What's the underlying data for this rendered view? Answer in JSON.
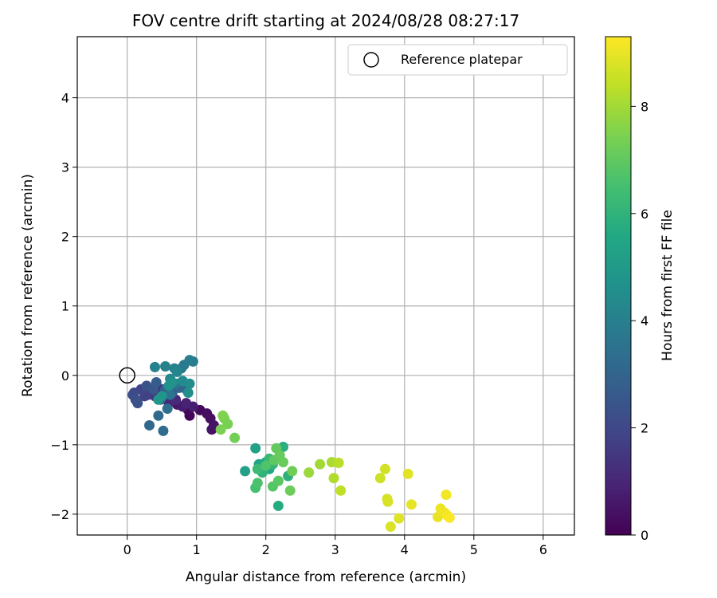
{
  "chart_data": {
    "type": "scatter",
    "title": "FOV centre drift starting at 2024/08/28 08:27:17",
    "xlabel": "Angular distance from reference (arcmin)",
    "ylabel": "Rotation from reference (arcmin)",
    "xlim": [
      -0.72,
      6.45
    ],
    "ylim": [
      -2.3,
      4.88
    ],
    "xticks": [
      0,
      1,
      2,
      3,
      4,
      5,
      6
    ],
    "yticks": [
      -2,
      -1,
      0,
      1,
      2,
      3,
      4
    ],
    "grid": true,
    "legend": {
      "position": "top-right",
      "entries": [
        "Reference platepar"
      ]
    },
    "reference_point": {
      "x": 0,
      "y": 0
    },
    "colorbar": {
      "label": "Hours from first FF file",
      "ticks": [
        0,
        2,
        4,
        6,
        8
      ],
      "range": [
        0,
        9.3
      ],
      "colormap": "viridis"
    },
    "points": [
      [
        0.9,
        -0.58,
        0.1
      ],
      [
        0.88,
        -0.5,
        0.2
      ],
      [
        1.05,
        -0.5,
        0.25
      ],
      [
        1.15,
        -0.55,
        0.35
      ],
      [
        1.2,
        -0.62,
        0.4
      ],
      [
        1.22,
        -0.78,
        0.45
      ],
      [
        1.25,
        -0.72,
        0.5
      ],
      [
        0.72,
        -0.42,
        0.6
      ],
      [
        0.8,
        -0.45,
        0.7
      ],
      [
        0.95,
        -0.45,
        0.8
      ],
      [
        0.85,
        -0.4,
        0.9
      ],
      [
        0.6,
        -0.4,
        1.0
      ],
      [
        0.7,
        -0.35,
        1.1
      ],
      [
        0.55,
        -0.3,
        1.2
      ],
      [
        0.5,
        -0.2,
        1.3
      ],
      [
        0.45,
        -0.25,
        1.4
      ],
      [
        0.4,
        -0.3,
        1.5
      ],
      [
        0.35,
        -0.22,
        1.6
      ],
      [
        0.3,
        -0.28,
        1.7
      ],
      [
        0.25,
        -0.3,
        1.8
      ],
      [
        0.2,
        -0.2,
        1.9
      ],
      [
        0.1,
        -0.25,
        2.0
      ],
      [
        0.08,
        -0.28,
        2.1
      ],
      [
        0.12,
        -0.35,
        2.2
      ],
      [
        0.15,
        -0.4,
        2.3
      ],
      [
        0.28,
        -0.15,
        2.4
      ],
      [
        0.38,
        -0.2,
        2.5
      ],
      [
        0.48,
        -0.35,
        2.6
      ],
      [
        0.42,
        -0.1,
        2.7
      ],
      [
        0.55,
        -0.2,
        2.8
      ],
      [
        0.65,
        -0.25,
        2.9
      ],
      [
        0.75,
        -0.18,
        3.0
      ],
      [
        0.85,
        -0.2,
        3.1
      ],
      [
        0.32,
        -0.72,
        3.15
      ],
      [
        0.45,
        -0.58,
        3.2
      ],
      [
        0.52,
        -0.8,
        3.3
      ],
      [
        0.58,
        -0.48,
        3.4
      ],
      [
        0.62,
        -0.28,
        3.5
      ],
      [
        0.7,
        -0.12,
        3.6
      ],
      [
        0.78,
        0.1,
        3.7
      ],
      [
        0.82,
        0.15,
        3.8
      ],
      [
        0.9,
        0.22,
        3.9
      ],
      [
        0.95,
        0.2,
        3.95
      ],
      [
        0.4,
        0.12,
        4.0
      ],
      [
        0.55,
        0.13,
        4.05
      ],
      [
        0.68,
        0.1,
        4.1
      ],
      [
        0.72,
        0.05,
        4.2
      ],
      [
        0.62,
        -0.05,
        4.3
      ],
      [
        0.8,
        -0.08,
        4.4
      ],
      [
        0.9,
        -0.12,
        4.5
      ],
      [
        0.88,
        -0.25,
        4.6
      ],
      [
        0.6,
        -0.15,
        4.7
      ],
      [
        0.65,
        -0.1,
        4.75
      ],
      [
        0.5,
        -0.3,
        4.8
      ],
      [
        0.45,
        -0.35,
        4.85
      ],
      [
        1.7,
        -1.38,
        5.2
      ],
      [
        1.85,
        -1.05,
        5.3
      ],
      [
        1.9,
        -1.28,
        5.4
      ],
      [
        2.0,
        -1.25,
        5.5
      ],
      [
        2.05,
        -1.35,
        5.6
      ],
      [
        2.18,
        -1.88,
        5.7
      ],
      [
        2.25,
        -1.03,
        5.8
      ],
      [
        2.32,
        -1.45,
        5.9
      ],
      [
        1.95,
        -1.4,
        6.0
      ],
      [
        2.1,
        -1.28,
        6.1
      ],
      [
        2.05,
        -1.2,
        6.2
      ],
      [
        1.88,
        -1.35,
        6.3
      ],
      [
        1.85,
        -1.62,
        6.5
      ],
      [
        1.88,
        -1.55,
        6.6
      ],
      [
        2.0,
        -1.3,
        6.7
      ],
      [
        2.1,
        -1.6,
        6.8
      ],
      [
        2.18,
        -1.52,
        6.9
      ],
      [
        2.12,
        -1.22,
        7.0
      ],
      [
        2.15,
        -1.05,
        7.05
      ],
      [
        2.2,
        -1.15,
        7.1
      ],
      [
        2.25,
        -1.25,
        7.15
      ],
      [
        2.35,
        -1.66,
        7.2
      ],
      [
        2.38,
        -1.38,
        7.25
      ],
      [
        1.55,
        -0.9,
        7.3
      ],
      [
        1.4,
        -0.62,
        7.35
      ],
      [
        1.45,
        -0.7,
        7.4
      ],
      [
        1.35,
        -0.78,
        7.45
      ],
      [
        1.38,
        -0.58,
        7.5
      ],
      [
        2.62,
        -1.4,
        7.9
      ],
      [
        2.78,
        -1.28,
        8.0
      ],
      [
        2.95,
        -1.25,
        8.1
      ],
      [
        2.98,
        -1.48,
        8.2
      ],
      [
        3.05,
        -1.26,
        8.3
      ],
      [
        3.08,
        -1.66,
        8.4
      ],
      [
        3.65,
        -1.48,
        8.6
      ],
      [
        3.72,
        -1.35,
        8.65
      ],
      [
        3.75,
        -1.78,
        8.7
      ],
      [
        3.76,
        -1.82,
        8.75
      ],
      [
        3.8,
        -2.18,
        8.8
      ],
      [
        3.92,
        -2.06,
        8.85
      ],
      [
        4.05,
        -1.42,
        8.9
      ],
      [
        4.1,
        -1.86,
        8.95
      ],
      [
        4.48,
        -2.04,
        9.0
      ],
      [
        4.52,
        -1.92,
        9.05
      ],
      [
        4.58,
        -1.98,
        9.1
      ],
      [
        4.6,
        -1.72,
        9.15
      ],
      [
        4.62,
        -2.02,
        9.2
      ],
      [
        4.65,
        -2.05,
        9.25
      ]
    ]
  }
}
